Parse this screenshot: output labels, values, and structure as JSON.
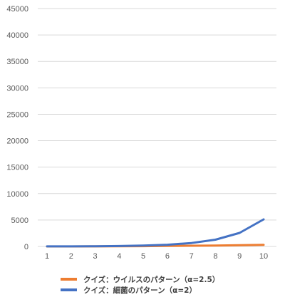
{
  "chart_data": {
    "type": "line",
    "x": [
      1,
      2,
      3,
      4,
      5,
      6,
      7,
      8,
      9,
      10
    ],
    "series": [
      {
        "name": "クイズ：ウイルスのパターン（α=2.5）",
        "color": "#ED7D31",
        "values": [
          1,
          6,
          16,
          32,
          56,
          88,
          130,
          181,
          243,
          316
        ]
      },
      {
        "name": "クイズ：細菌のパターン（α=2）",
        "color": "#4472C4",
        "values": [
          10,
          20,
          40,
          80,
          160,
          320,
          640,
          1280,
          2560,
          5120
        ]
      }
    ],
    "ylim": [
      0,
      45000
    ],
    "yticks": [
      0,
      5000,
      10000,
      15000,
      20000,
      25000,
      30000,
      35000,
      40000,
      45000
    ],
    "xticks": [
      "1",
      "2",
      "3",
      "4",
      "5",
      "6",
      "7",
      "8",
      "9",
      "10"
    ],
    "grid": true,
    "legend_position": "bottom"
  }
}
